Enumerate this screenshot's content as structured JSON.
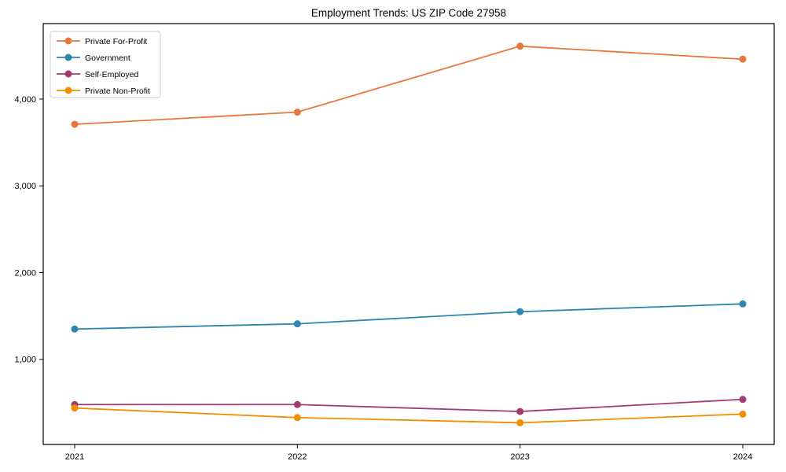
{
  "chart_data": {
    "type": "line",
    "title": "Employment Trends: US ZIP Code 27958",
    "categories": [
      "2021",
      "2022",
      "2023",
      "2024"
    ],
    "series": [
      {
        "name": "Private For-Profit",
        "color": "#e8773d",
        "values": [
          3710,
          3850,
          4610,
          4460
        ]
      },
      {
        "name": "Government",
        "color": "#2e86ab",
        "values": [
          1350,
          1410,
          1550,
          1640
        ]
      },
      {
        "name": "Self-Employed",
        "color": "#a23b72",
        "values": [
          480,
          480,
          400,
          540
        ]
      },
      {
        "name": "Private Non-Profit",
        "color": "#f18f01",
        "values": [
          440,
          330,
          270,
          370
        ]
      }
    ],
    "xlabel": "",
    "ylabel": "",
    "yticks": [
      1000,
      2000,
      3000,
      4000
    ],
    "ytick_labels": [
      "1,000",
      "2,000",
      "3,000",
      "4,000"
    ],
    "ylim": [
      20,
      4870
    ],
    "grid": false,
    "legend_position": "upper-left",
    "axis_color": "#000000",
    "legend_border_color": "#cccccc",
    "background": "#ffffff"
  }
}
